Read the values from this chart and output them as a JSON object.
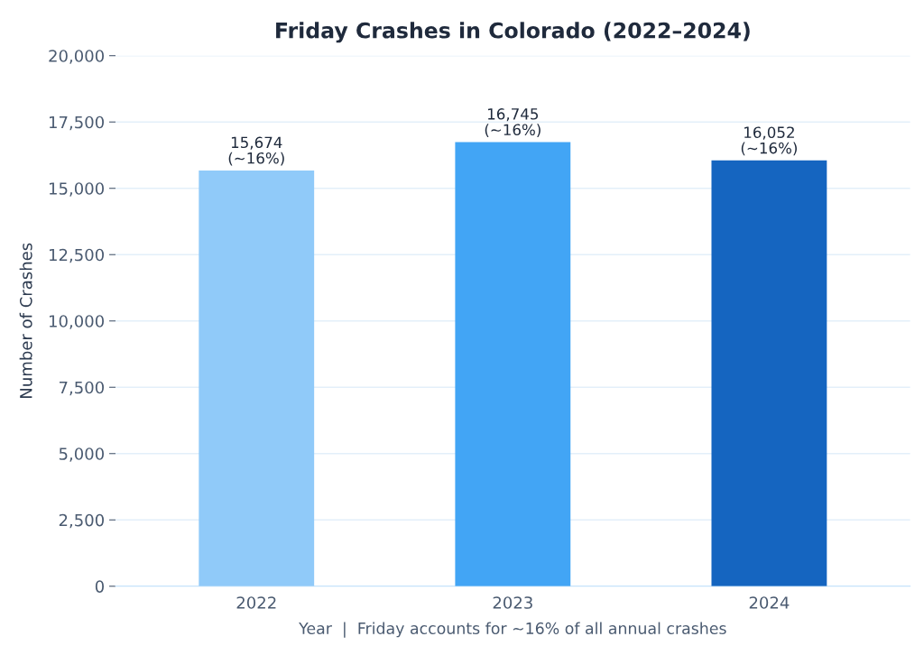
{
  "chart_data": {
    "type": "bar",
    "title": "Friday Crashes in Colorado (2022–2024)",
    "xlabel": "Year  |  Friday accounts for ~16% of all annual crashes",
    "ylabel": "Number of Crashes",
    "categories": [
      "2022",
      "2023",
      "2024"
    ],
    "values": [
      15674,
      16745,
      16052
    ],
    "colors": [
      "#90caf9",
      "#42a5f5",
      "#1565c0"
    ],
    "value_labels": [
      "15,674\n(~16%)",
      "16,745\n(~16%)",
      "16,052\n(~16%)"
    ],
    "ylim": [
      0,
      20000
    ],
    "yticks": [
      0,
      {
        "value": 2500,
        "label": "2,500"
      },
      {
        "value": 5000,
        "label": "5,000"
      },
      {
        "value": 7500,
        "label": "7,500"
      },
      {
        "value": 10000,
        "label": "10,000"
      },
      {
        "value": 12500,
        "label": "12,500"
      },
      {
        "value": 15000,
        "label": "15,000"
      },
      {
        "value": 17500,
        "label": "17,500"
      },
      {
        "value": 20000,
        "label": "20,000"
      }
    ],
    "grid": "y",
    "legend": false
  }
}
